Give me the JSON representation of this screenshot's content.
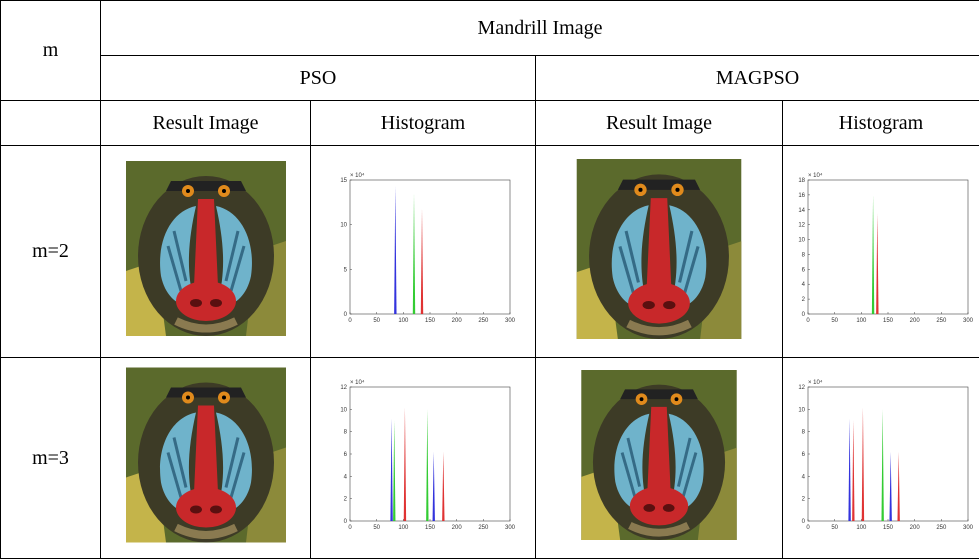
{
  "table": {
    "header": {
      "row_label": "m",
      "image": "Mandrill Image",
      "methods": [
        "PSO",
        "MAGPSO"
      ],
      "columns": [
        "Result Image",
        "Histogram",
        "Result Image",
        "Histogram"
      ]
    },
    "rows": [
      {
        "label": "m=2",
        "histograms": [
          {
            "type": "histogram",
            "multiplier": "× 10⁴",
            "xlim": [
              0,
              300
            ],
            "ylim": [
              0,
              15
            ],
            "xticks": [
              0,
              50,
              100,
              150,
              200,
              250,
              300
            ],
            "yticks": [
              0,
              5,
              10,
              15
            ],
            "spikes": [
              {
                "x": 85,
                "height": 14.3,
                "color": "#3333dd"
              },
              {
                "x": 120,
                "height": 13.5,
                "color": "#33cc33"
              },
              {
                "x": 135,
                "height": 11.8,
                "color": "#e03333"
              }
            ]
          },
          {
            "type": "histogram",
            "multiplier": "× 10⁴",
            "xlim": [
              0,
              300
            ],
            "ylim": [
              0,
              18
            ],
            "xticks": [
              0,
              50,
              100,
              150,
              200,
              250,
              300
            ],
            "yticks": [
              0,
              2,
              4,
              6,
              8,
              10,
              12,
              14,
              16,
              18
            ],
            "spikes": [
              {
                "x": 122,
                "height": 16,
                "color": "#33cc33"
              },
              {
                "x": 130,
                "height": 13.5,
                "color": "#e03333"
              }
            ]
          }
        ]
      },
      {
        "label": "m=3",
        "histograms": [
          {
            "type": "histogram",
            "multiplier": "× 10⁴",
            "xlim": [
              0,
              300
            ],
            "ylim": [
              0,
              12
            ],
            "xticks": [
              0,
              50,
              100,
              150,
              200,
              250,
              300
            ],
            "yticks": [
              0,
              2,
              4,
              6,
              8,
              10,
              12
            ],
            "spikes": [
              {
                "x": 78,
                "height": 9.2,
                "color": "#3333dd"
              },
              {
                "x": 83,
                "height": 9,
                "color": "#33cc33"
              },
              {
                "x": 103,
                "height": 10.2,
                "color": "#e03333"
              },
              {
                "x": 145,
                "height": 10,
                "color": "#33cc33"
              },
              {
                "x": 157,
                "height": 6.2,
                "color": "#3333dd"
              },
              {
                "x": 175,
                "height": 6.2,
                "color": "#e03333"
              }
            ]
          },
          {
            "type": "histogram",
            "multiplier": "× 10⁴",
            "xlim": [
              0,
              300
            ],
            "ylim": [
              0,
              12
            ],
            "xticks": [
              0,
              50,
              100,
              150,
              200,
              250,
              300
            ],
            "yticks": [
              0,
              2,
              4,
              6,
              8,
              10,
              12
            ],
            "spikes": [
              {
                "x": 78,
                "height": 9.2,
                "color": "#3333dd"
              },
              {
                "x": 85,
                "height": 9,
                "color": "#e03333"
              },
              {
                "x": 103,
                "height": 10.2,
                "color": "#e03333"
              },
              {
                "x": 140,
                "height": 10,
                "color": "#33cc33"
              },
              {
                "x": 155,
                "height": 6.2,
                "color": "#3333dd"
              },
              {
                "x": 170,
                "height": 6.2,
                "color": "#e03333"
              }
            ]
          }
        ]
      }
    ]
  }
}
